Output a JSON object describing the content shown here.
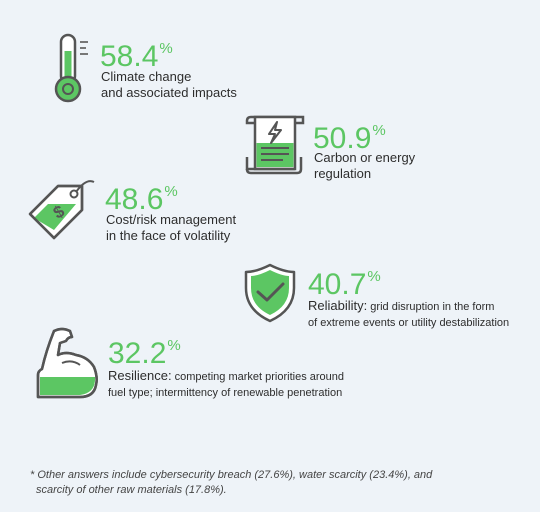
{
  "chart_data": {
    "type": "infographic",
    "unit": "%",
    "items": [
      {
        "icon": "thermometer-icon",
        "value": "58.4",
        "label_line1": "Climate change",
        "label_line2": "and associated impacts"
      },
      {
        "icon": "receipt-bolt-icon",
        "value": "50.9",
        "label_line1": "Carbon or energy",
        "label_line2": "regulation"
      },
      {
        "icon": "price-tag-icon",
        "value": "48.6",
        "label_line1": "Cost/risk management",
        "label_line2": "in the face of volatility"
      },
      {
        "icon": "shield-check-icon",
        "value": "40.7",
        "label_lead": "Reliability:",
        "label_rest": " grid disruption in the form",
        "label_line2": "of extreme events or utility destabilization"
      },
      {
        "icon": "flexed-arm-icon",
        "value": "32.2",
        "label_lead": "Resilience:",
        "label_rest": " competing market priorities around",
        "label_line2": "fuel type; intermittency of renewable penetration"
      }
    ]
  },
  "colors": {
    "accent": "#5cc663",
    "outline": "#555555",
    "background": "#eef3f8"
  },
  "footnote": {
    "line1": "* Other answers include cybersecurity breach (27.6%), water scarcity (23.4%), and",
    "line2": "scarcity of other raw materials (17.8%)."
  }
}
